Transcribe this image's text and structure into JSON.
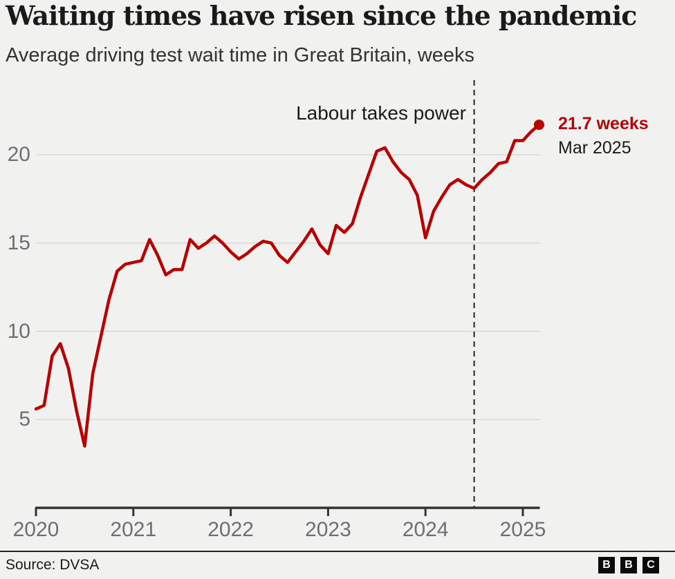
{
  "header": {
    "title": "Waiting times have risen since the pandemic",
    "subtitle": "Average driving test wait time in Great Britain, weeks"
  },
  "chart_data": {
    "type": "line",
    "title": "Waiting times have risen since the pandemic",
    "ylabel": "Average driving test wait time in Great Britain, weeks",
    "unit": "weeks",
    "frequency": "monthly",
    "start_month": "2020-01",
    "values": [
      5.6,
      5.8,
      8.6,
      9.3,
      7.9,
      5.5,
      3.5,
      7.6,
      9.7,
      11.8,
      13.4,
      13.8,
      13.9,
      14.0,
      15.2,
      14.3,
      13.2,
      13.5,
      13.5,
      15.2,
      14.7,
      15.0,
      15.4,
      15.0,
      14.5,
      14.1,
      14.4,
      14.8,
      15.1,
      15.0,
      14.3,
      13.9,
      14.5,
      15.1,
      15.8,
      14.9,
      14.4,
      16.0,
      15.6,
      16.1,
      17.6,
      18.9,
      20.2,
      20.4,
      19.6,
      19.0,
      18.6,
      17.7,
      15.3,
      16.8,
      17.6,
      18.3,
      18.6,
      18.3,
      18.1,
      18.6,
      19.0,
      19.5,
      19.6,
      20.8,
      20.8,
      21.3,
      21.7
    ],
    "x_ticks": [
      "2020",
      "2021",
      "2022",
      "2023",
      "2024",
      "2025"
    ],
    "y_ticks": [
      5,
      10,
      15,
      20
    ],
    "y_range": [
      0,
      24.2
    ],
    "grid": true,
    "legend": "none",
    "annotation": {
      "label": "Labour takes power",
      "month": "2024-07"
    },
    "end_point": {
      "value": 21.7,
      "value_label": "21.7 weeks",
      "date_label": "Mar 2025",
      "month": "2025-03"
    }
  },
  "footer": {
    "source": "Source: DVSA",
    "bbc_letters": [
      "B",
      "B",
      "C"
    ]
  },
  "colors": {
    "line": "#b80000",
    "accent_text": "#b80000",
    "background": "#f1f1ef",
    "grid": "#d8d8d6",
    "axis": "#333333",
    "dashed": "#222222",
    "tick_label": "#6e6e73",
    "text": "#1a1a1a"
  }
}
